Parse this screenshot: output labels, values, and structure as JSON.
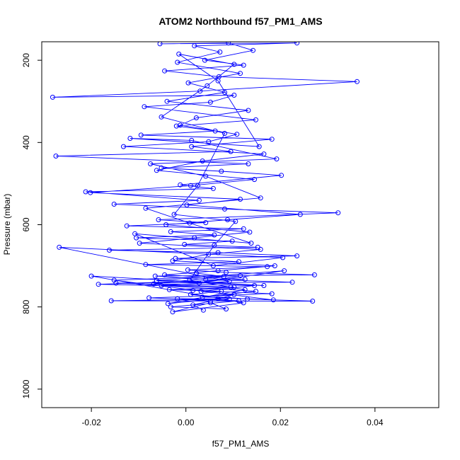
{
  "chart_data": {
    "type": "scatter",
    "title": "ATOM2 Northbound f57_PM1_AMS",
    "xlabel": "f57_PM1_AMS",
    "ylabel": "Pressure (mbar)",
    "xlim": [
      -0.0305,
      0.0535
    ],
    "ylim": [
      1045,
      155
    ],
    "y_reversed": true,
    "x_ticks": [
      -0.02,
      0.0,
      0.02,
      0.04
    ],
    "x_tick_labels": [
      "-0.02",
      "0.00",
      "0.02",
      "0.04"
    ],
    "y_ticks": [
      200,
      400,
      600,
      800,
      1000
    ],
    "y_tick_labels": [
      "200",
      "400",
      "600",
      "800",
      "1000"
    ],
    "series": [
      {
        "color": "#0000ff",
        "marker": "open-circle",
        "connected": true,
        "points": [
          [
            0.0037,
            808
          ],
          [
            0.0015,
            795
          ],
          [
            0.0052,
            786
          ],
          [
            -0.0018,
            780
          ],
          [
            0.0092,
            781
          ],
          [
            -0.0158,
            785
          ],
          [
            0.0268,
            786
          ],
          [
            0.013,
            781
          ],
          [
            0.001,
            770
          ],
          [
            0.0075,
            762
          ],
          [
            -0.0035,
            758
          ],
          [
            0.0102,
            752
          ],
          [
            -0.0148,
            742
          ],
          [
            0.0225,
            740
          ],
          [
            0.0042,
            733
          ],
          [
            -0.0065,
            725
          ],
          [
            0.0272,
            722
          ],
          [
            0.0085,
            716
          ],
          [
            0.0004,
            710
          ],
          [
            0.0172,
            702
          ],
          [
            -0.0085,
            697
          ],
          [
            0.0112,
            690
          ],
          [
            -0.0022,
            682
          ],
          [
            0.0235,
            676
          ],
          [
            0.0068,
            668
          ],
          [
            -0.0162,
            662
          ],
          [
            0.0152,
            655
          ],
          [
            -0.0003,
            648
          ],
          [
            0.0098,
            640
          ],
          [
            -0.0105,
            632
          ],
          [
            0.006,
            625
          ],
          [
            -0.0032,
            617
          ],
          [
            0.0122,
            610
          ],
          [
            -0.0125,
            603
          ],
          [
            0.0042,
            595
          ],
          [
            -0.0058,
            588
          ],
          [
            0.0322,
            571
          ],
          [
            0.0082,
            562
          ],
          [
            -0.0152,
            550
          ],
          [
            0.0028,
            541
          ],
          [
            -0.0212,
            520
          ],
          [
            0.0058,
            512
          ],
          [
            -0.0012,
            503
          ],
          [
            0.0202,
            480
          ],
          [
            0.0075,
            470
          ],
          [
            -0.0052,
            462
          ],
          [
            0.0132,
            452
          ],
          [
            -0.0275,
            433
          ],
          [
            0.0095,
            422
          ],
          [
            0.0012,
            410
          ],
          [
            0.0182,
            392
          ],
          [
            -0.0095,
            382
          ],
          [
            0.0062,
            372
          ],
          [
            -0.002,
            360
          ],
          [
            0.0148,
            345
          ],
          [
            -0.0088,
            313
          ],
          [
            0.0052,
            302
          ],
          [
            0.0102,
            285
          ],
          [
            -0.0282,
            290
          ],
          [
            0.003,
            275
          ],
          [
            0.0362,
            252
          ],
          [
            0.007,
            240
          ],
          [
            -0.0045,
            226
          ],
          [
            0.0122,
            212
          ],
          [
            0.004,
            200
          ],
          [
            0.0142,
            176
          ],
          [
            0.009,
            158
          ],
          [
            -0.0055,
            160
          ],
          [
            0.0235,
            158
          ],
          [
            0.0018,
            165
          ],
          [
            0.0072,
            180
          ],
          [
            -0.0018,
            205
          ],
          [
            0.0115,
            232
          ],
          [
            0.0005,
            255
          ],
          [
            0.0082,
            278
          ],
          [
            -0.004,
            300
          ],
          [
            0.0132,
            322
          ],
          [
            0.0022,
            340
          ],
          [
            -0.0012,
            358
          ],
          [
            0.0108,
            380
          ],
          [
            0.0048,
            398
          ],
          [
            -0.0132,
            410
          ],
          [
            0.0165,
            428
          ],
          [
            0.0035,
            445
          ],
          [
            -0.0062,
            468
          ],
          [
            0.0145,
            490
          ],
          [
            0.001,
            505
          ],
          [
            -0.0202,
            522
          ],
          [
            0.0115,
            538
          ],
          [
            0.0002,
            552
          ],
          [
            0.0242,
            575
          ],
          [
            0.0088,
            588
          ],
          [
            -0.0042,
            600
          ],
          [
            0.0135,
            618
          ],
          [
            0.0018,
            632
          ],
          [
            -0.0098,
            645
          ],
          [
            0.0158,
            660
          ],
          [
            0.0048,
            672
          ],
          [
            -0.0028,
            688
          ],
          [
            0.0188,
            700
          ],
          [
            0.0068,
            712
          ],
          [
            -0.0045,
            722
          ],
          [
            0.0125,
            733
          ],
          [
            -0.0185,
            745
          ],
          [
            0.0095,
            752
          ],
          [
            0.0015,
            760
          ],
          [
            0.0182,
            768
          ],
          [
            -0.0078,
            778
          ],
          [
            0.0112,
            785
          ],
          [
            -0.0032,
            800
          ],
          [
            0.0085,
            805
          ],
          [
            0.0052,
            790
          ],
          [
            -0.0028,
            812
          ],
          [
            0.0122,
            790
          ],
          [
            -0.02,
            725
          ],
          [
            0.0165,
            748
          ],
          [
            -0.0062,
            736
          ],
          [
            0.0208,
            712
          ],
          [
            0.0028,
            742
          ],
          [
            0.0115,
            724
          ],
          [
            -0.0152,
            735
          ],
          [
            0.0185,
            783
          ],
          [
            0.0035,
            776
          ],
          [
            0.0148,
            762
          ],
          [
            -0.0052,
            748
          ],
          [
            0.0092,
            738
          ],
          [
            -0.0268,
            655
          ],
          [
            0.0205,
            680
          ],
          [
            0.0058,
            700
          ],
          [
            -0.0108,
            622
          ],
          [
            0.0138,
            645
          ],
          [
            0.0008,
            596
          ],
          [
            -0.0085,
            560
          ],
          [
            0.0158,
            535
          ],
          [
            0.0042,
            482
          ],
          [
            -0.0075,
            452
          ],
          [
            0.0192,
            440
          ],
          [
            0.0012,
            395
          ],
          [
            -0.0118,
            390
          ],
          [
            0.0155,
            410
          ],
          [
            0.0068,
            250
          ],
          [
            -0.0015,
            185
          ],
          [
            0.0102,
            210
          ],
          [
            0.0045,
            262
          ],
          [
            -0.0052,
            338
          ],
          [
            0.0082,
            378
          ],
          [
            0.0025,
            505
          ],
          [
            -0.0025,
            575
          ],
          [
            0.0105,
            592
          ],
          [
            0.006,
            650
          ],
          [
            0.0008,
            735
          ],
          [
            0.0125,
            758
          ],
          [
            -0.0038,
            792
          ],
          [
            0.0068,
            780
          ],
          [
            0.0102,
            770
          ],
          [
            0.0032,
            762
          ],
          [
            0.0145,
            748
          ],
          [
            -0.0068,
            744
          ],
          [
            0.008,
            726
          ],
          [
            0.0022,
            718
          ]
        ]
      }
    ]
  }
}
